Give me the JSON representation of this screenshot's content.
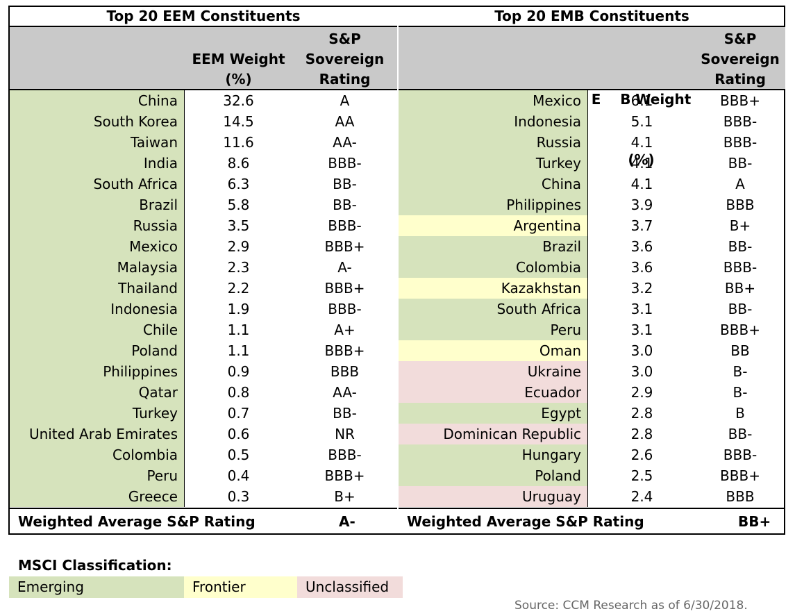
{
  "colors": {
    "emerging": "#d6e3bc",
    "frontier": "#ffffcc",
    "unclassified": "#f2dcdb",
    "header": "#c9c9c9"
  },
  "eem": {
    "title": "Top 20 EEM Constituents",
    "weight_header": [
      "EEM Weight",
      "(%)"
    ],
    "rating_header": [
      "S&P",
      "Sovereign",
      "Rating"
    ],
    "rows": [
      {
        "country": "China",
        "weight": "32.6",
        "rating": "A",
        "class": "emerging"
      },
      {
        "country": "South Korea",
        "weight": "14.5",
        "rating": "AA",
        "class": "emerging"
      },
      {
        "country": "Taiwan",
        "weight": "11.6",
        "rating": "AA-",
        "class": "emerging"
      },
      {
        "country": "India",
        "weight": "8.6",
        "rating": "BBB-",
        "class": "emerging"
      },
      {
        "country": "South Africa",
        "weight": "6.3",
        "rating": "BB-",
        "class": "emerging"
      },
      {
        "country": "Brazil",
        "weight": "5.8",
        "rating": "BB-",
        "class": "emerging"
      },
      {
        "country": "Russia",
        "weight": "3.5",
        "rating": "BBB-",
        "class": "emerging"
      },
      {
        "country": "Mexico",
        "weight": "2.9",
        "rating": "BBB+",
        "class": "emerging"
      },
      {
        "country": "Malaysia",
        "weight": "2.3",
        "rating": "A-",
        "class": "emerging"
      },
      {
        "country": "Thailand",
        "weight": "2.2",
        "rating": "BBB+",
        "class": "emerging"
      },
      {
        "country": "Indonesia",
        "weight": "1.9",
        "rating": "BBB-",
        "class": "emerging"
      },
      {
        "country": "Chile",
        "weight": "1.1",
        "rating": "A+",
        "class": "emerging"
      },
      {
        "country": "Poland",
        "weight": "1.1",
        "rating": "BBB+",
        "class": "emerging"
      },
      {
        "country": "Philippines",
        "weight": "0.9",
        "rating": "BBB",
        "class": "emerging"
      },
      {
        "country": "Qatar",
        "weight": "0.8",
        "rating": "AA-",
        "class": "emerging"
      },
      {
        "country": "Turkey",
        "weight": "0.7",
        "rating": "BB-",
        "class": "emerging"
      },
      {
        "country": "United Arab Emirates",
        "weight": "0.6",
        "rating": "NR",
        "class": "emerging"
      },
      {
        "country": "Colombia",
        "weight": "0.5",
        "rating": "BBB-",
        "class": "emerging"
      },
      {
        "country": "Peru",
        "weight": "0.4",
        "rating": "BBB+",
        "class": "emerging"
      },
      {
        "country": "Greece",
        "weight": "0.3",
        "rating": "B+",
        "class": "emerging"
      }
    ],
    "footer_label": "Weighted Average S&P Rating",
    "footer_rating": "A-"
  },
  "emb": {
    "title": "Top 20 EMB Constituents",
    "weight_header": [
      "E    B Weight",
      "(%)"
    ],
    "rating_header": [
      "S&P",
      "Sovereign",
      "Rating"
    ],
    "rows": [
      {
        "country": "Mexico",
        "weight": "6.1",
        "rating": "BBB+",
        "class": "emerging"
      },
      {
        "country": "Indonesia",
        "weight": "5.1",
        "rating": "BBB-",
        "class": "emerging"
      },
      {
        "country": "Russia",
        "weight": "4.1",
        "rating": "BBB-",
        "class": "emerging"
      },
      {
        "country": "Turkey",
        "weight": "4.1",
        "rating": "BB-",
        "class": "emerging"
      },
      {
        "country": "China",
        "weight": "4.1",
        "rating": "A",
        "class": "emerging"
      },
      {
        "country": "Philippines",
        "weight": "3.9",
        "rating": "BBB",
        "class": "emerging"
      },
      {
        "country": "Argentina",
        "weight": "3.7",
        "rating": "B+",
        "class": "frontier"
      },
      {
        "country": "Brazil",
        "weight": "3.6",
        "rating": "BB-",
        "class": "emerging"
      },
      {
        "country": "Colombia",
        "weight": "3.6",
        "rating": "BBB-",
        "class": "emerging"
      },
      {
        "country": "Kazakhstan",
        "weight": "3.2",
        "rating": "BB+",
        "class": "frontier"
      },
      {
        "country": "South Africa",
        "weight": "3.1",
        "rating": "BB-",
        "class": "emerging"
      },
      {
        "country": "Peru",
        "weight": "3.1",
        "rating": "BBB+",
        "class": "emerging"
      },
      {
        "country": "Oman",
        "weight": "3.0",
        "rating": "BB",
        "class": "frontier"
      },
      {
        "country": "Ukraine",
        "weight": "3.0",
        "rating": "B-",
        "class": "unclassified"
      },
      {
        "country": "Ecuador",
        "weight": "2.9",
        "rating": "B-",
        "class": "unclassified"
      },
      {
        "country": "Egypt",
        "weight": "2.8",
        "rating": "B",
        "class": "emerging"
      },
      {
        "country": "Dominican Republic",
        "weight": "2.8",
        "rating": "BB-",
        "class": "unclassified"
      },
      {
        "country": "Hungary",
        "weight": "2.6",
        "rating": "BBB-",
        "class": "emerging"
      },
      {
        "country": "Poland",
        "weight": "2.5",
        "rating": "BBB+",
        "class": "emerging"
      },
      {
        "country": "Uruguay",
        "weight": "2.4",
        "rating": "BBB",
        "class": "unclassified"
      }
    ],
    "footer_label": "Weighted Average S&P Rating",
    "footer_rating": "BB+"
  },
  "legend": {
    "title": "MSCI Classification:",
    "items": [
      {
        "label": "Emerging",
        "class": "emerging"
      },
      {
        "label": "Frontier",
        "class": "frontier"
      },
      {
        "label": "Unclassified",
        "class": "unclassified"
      }
    ]
  },
  "source": "Source: CCM Research as of 6/30/2018."
}
